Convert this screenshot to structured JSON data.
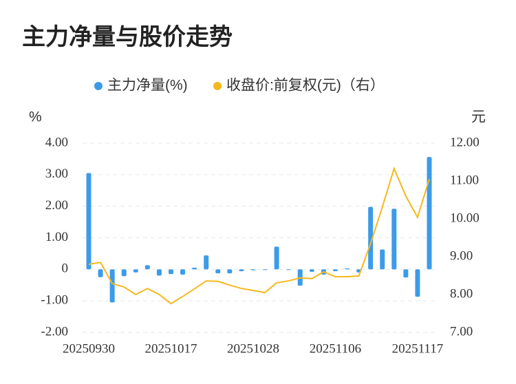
{
  "chart_data": {
    "type": "bar-line",
    "title": "主力净量与股价走势",
    "y_label": "%",
    "y2_label": "元",
    "categories": [
      "20250930",
      null,
      null,
      null,
      null,
      null,
      null,
      "20251017",
      null,
      null,
      null,
      null,
      null,
      null,
      "20251028",
      null,
      null,
      null,
      null,
      null,
      null,
      "20251106",
      null,
      null,
      null,
      null,
      null,
      null,
      "20251117",
      null
    ],
    "series": [
      {
        "name": "主力净量(%)",
        "type": "bar",
        "color": "#3c9be9",
        "values": [
          3.05,
          -0.25,
          -1.05,
          -0.22,
          -0.1,
          0.13,
          -0.2,
          -0.15,
          -0.17,
          0.05,
          0.44,
          -0.13,
          -0.13,
          -0.06,
          -0.03,
          -0.02,
          0.72,
          -0.01,
          -0.52,
          -0.08,
          -0.17,
          -0.06,
          0.03,
          -0.1,
          1.98,
          0.63,
          1.92,
          -0.26,
          -0.87,
          3.56
        ]
      },
      {
        "name": "收盘价:前复权(元)（右）",
        "type": "line",
        "axis": "y2",
        "color": "#f5b81c",
        "values": [
          8.8,
          8.85,
          8.29,
          8.2,
          8.0,
          8.16,
          8.0,
          7.76,
          7.95,
          8.15,
          8.36,
          8.35,
          8.25,
          8.16,
          8.11,
          8.05,
          8.31,
          8.36,
          8.44,
          8.42,
          8.6,
          8.47,
          8.47,
          8.49,
          9.35,
          10.31,
          11.33,
          10.6,
          10.04,
          11.05
        ]
      }
    ],
    "ylim": [
      -2,
      4
    ],
    "yticks": [
      {
        "value": -2,
        "label": "-2.00"
      },
      {
        "value": -1,
        "label": "-1.00"
      },
      0,
      {
        "value": 1,
        "label": "1.00"
      },
      {
        "value": 2,
        "label": "2.00"
      },
      {
        "value": 3,
        "label": "3.00"
      },
      {
        "value": 4,
        "label": "4.00"
      }
    ],
    "y2lim": [
      7,
      12
    ],
    "y2ticks": [
      {
        "value": 7,
        "label": "7.00"
      },
      {
        "value": 8,
        "label": "8.00"
      },
      {
        "value": 9,
        "label": "9.00"
      },
      {
        "value": 10,
        "label": "10.00"
      },
      {
        "value": 11,
        "label": "11.00"
      },
      {
        "value": 12,
        "label": "12.00"
      }
    ],
    "grid": true,
    "legend": "top"
  }
}
